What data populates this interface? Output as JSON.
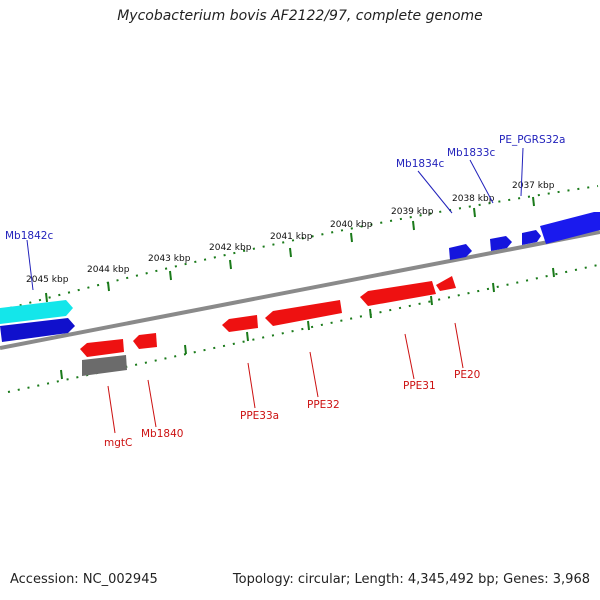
{
  "header": {
    "title": "Mycobacterium bovis AF2122/97, complete genome"
  },
  "footer": {
    "accession": "Accession: NC_002945",
    "topology": "Topology: circular; Length: 4,345,492 bp; Genes: 3,968"
  },
  "ruler": {
    "ticks": [
      "2037 kbp",
      "2038 kbp",
      "2039 kbp",
      "2040 kbp",
      "2041 kbp",
      "2042 kbp",
      "2043 kbp",
      "2044 kbp",
      "2045 kbp"
    ]
  },
  "colors": {
    "forward_gene": "#1010dd",
    "forward_gene_alt": "#14e6ea",
    "reverse_gene": "#ee1111",
    "reverse_gene_alt": "#6b6b6b",
    "backbone": "#7a7a7a",
    "ruler": "#1a7a1a",
    "forward_label": "#2222bb",
    "reverse_label": "#cc1111"
  },
  "forward_labels": [
    "PE_PGRS32a",
    "Mb1833c",
    "Mb1834c",
    "Mb1842c"
  ],
  "reverse_labels": [
    "mgtC",
    "Mb1840",
    "PPE33a",
    "PPE32",
    "PPE31",
    "PE20"
  ]
}
